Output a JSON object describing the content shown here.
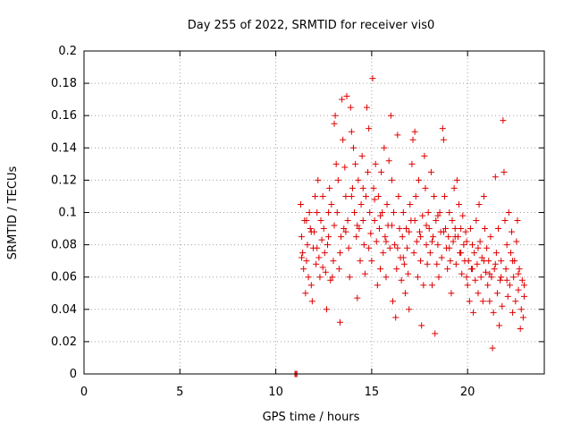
{
  "chart_data": {
    "type": "scatter",
    "title": "Day 255 of 2022, SRMTID for receiver vis0",
    "xlabel": "GPS time / hours",
    "ylabel": "SRMTID / TECUs",
    "xlim": [
      0,
      24
    ],
    "ylim": [
      0,
      0.2
    ],
    "xticks": [
      0,
      5,
      10,
      15,
      20
    ],
    "xtick_labels": [
      "0",
      "5",
      "10",
      "15",
      "20"
    ],
    "yticks": [
      0,
      0.02,
      0.04,
      0.06,
      0.08,
      0.1,
      0.12,
      0.14,
      0.16,
      0.18,
      0.2
    ],
    "ytick_labels": [
      "0",
      "0.02",
      "0.04",
      "0.06",
      "0.08",
      "0.1",
      "0.12",
      "0.14",
      "0.16",
      "0.18",
      "0.2"
    ],
    "grid": true,
    "marker": "+",
    "color": "#e00000",
    "series": [
      {
        "points": [
          [
            11.0,
            0.0
          ],
          [
            11.05,
            0.0
          ],
          [
            11.1,
            0.0
          ],
          [
            11.3,
            0.105
          ],
          [
            11.35,
            0.085
          ],
          [
            11.4,
            0.075
          ],
          [
            11.45,
            0.065
          ],
          [
            11.5,
            0.095
          ],
          [
            11.55,
            0.05
          ],
          [
            11.6,
            0.07
          ],
          [
            11.65,
            0.08
          ],
          [
            11.7,
            0.06
          ],
          [
            11.75,
            0.1
          ],
          [
            11.8,
            0.09
          ],
          [
            11.85,
            0.055
          ],
          [
            11.9,
            0.045
          ],
          [
            11.95,
            0.078
          ],
          [
            12.0,
            0.088
          ],
          [
            12.05,
            0.11
          ],
          [
            12.1,
            0.068
          ],
          [
            12.15,
            0.1
          ],
          [
            12.2,
            0.12
          ],
          [
            12.25,
            0.072
          ],
          [
            12.3,
            0.06
          ],
          [
            12.35,
            0.095
          ],
          [
            12.4,
            0.083
          ],
          [
            12.45,
            0.11
          ],
          [
            12.5,
            0.09
          ],
          [
            12.55,
            0.075
          ],
          [
            12.6,
            0.063
          ],
          [
            12.65,
            0.04
          ],
          [
            12.7,
            0.08
          ],
          [
            12.75,
            0.1
          ],
          [
            12.8,
            0.115
          ],
          [
            12.85,
            0.058
          ],
          [
            12.9,
            0.105
          ],
          [
            12.95,
            0.06
          ],
          [
            13.0,
            0.07
          ],
          [
            13.05,
            0.155
          ],
          [
            13.1,
            0.16
          ],
          [
            13.15,
            0.13
          ],
          [
            13.2,
            0.1
          ],
          [
            13.25,
            0.12
          ],
          [
            13.3,
            0.065
          ],
          [
            13.35,
            0.032
          ],
          [
            13.4,
            0.085
          ],
          [
            13.45,
            0.17
          ],
          [
            13.5,
            0.145
          ],
          [
            13.55,
            0.09
          ],
          [
            13.6,
            0.128
          ],
          [
            13.65,
            0.11
          ],
          [
            13.7,
            0.172
          ],
          [
            13.75,
            0.095
          ],
          [
            13.8,
            0.078
          ],
          [
            13.85,
            0.06
          ],
          [
            13.9,
            0.165
          ],
          [
            13.95,
            0.15
          ],
          [
            14.0,
            0.115
          ],
          [
            14.05,
            0.14
          ],
          [
            14.1,
            0.1
          ],
          [
            14.15,
            0.13
          ],
          [
            14.2,
            0.085
          ],
          [
            14.25,
            0.047
          ],
          [
            14.3,
            0.12
          ],
          [
            14.35,
            0.09
          ],
          [
            14.4,
            0.07
          ],
          [
            14.45,
            0.105
          ],
          [
            14.5,
            0.135
          ],
          [
            14.55,
            0.095
          ],
          [
            14.6,
            0.08
          ],
          [
            14.65,
            0.062
          ],
          [
            14.7,
            0.11
          ],
          [
            14.75,
            0.165
          ],
          [
            14.8,
            0.125
          ],
          [
            14.85,
            0.152
          ],
          [
            14.9,
            0.1
          ],
          [
            14.95,
            0.087
          ],
          [
            15.0,
            0.07
          ],
          [
            15.05,
            0.183
          ],
          [
            15.1,
            0.115
          ],
          [
            15.15,
            0.095
          ],
          [
            15.2,
            0.13
          ],
          [
            15.25,
            0.082
          ],
          [
            15.3,
            0.055
          ],
          [
            15.35,
            0.11
          ],
          [
            15.4,
            0.09
          ],
          [
            15.45,
            0.065
          ],
          [
            15.5,
            0.125
          ],
          [
            15.55,
            0.1
          ],
          [
            15.6,
            0.075
          ],
          [
            15.65,
            0.14
          ],
          [
            15.7,
            0.085
          ],
          [
            15.75,
            0.06
          ],
          [
            15.8,
            0.105
          ],
          [
            15.85,
            0.092
          ],
          [
            15.9,
            0.132
          ],
          [
            15.95,
            0.078
          ],
          [
            16.0,
            0.16
          ],
          [
            16.05,
            0.12
          ],
          [
            16.1,
            0.045
          ],
          [
            16.15,
            0.1
          ],
          [
            16.2,
            0.08
          ],
          [
            16.25,
            0.035
          ],
          [
            16.3,
            0.065
          ],
          [
            16.35,
            0.148
          ],
          [
            16.4,
            0.11
          ],
          [
            16.45,
            0.09
          ],
          [
            16.5,
            0.072
          ],
          [
            16.55,
            0.058
          ],
          [
            16.6,
            0.085
          ],
          [
            16.65,
            0.1
          ],
          [
            16.7,
            0.068
          ],
          [
            16.75,
            0.05
          ],
          [
            16.8,
            0.09
          ],
          [
            16.85,
            0.078
          ],
          [
            16.9,
            0.062
          ],
          [
            16.95,
            0.04
          ],
          [
            17.0,
            0.105
          ],
          [
            17.05,
            0.095
          ],
          [
            17.1,
            0.13
          ],
          [
            17.15,
            0.145
          ],
          [
            17.2,
            0.075
          ],
          [
            17.25,
            0.15
          ],
          [
            17.3,
            0.11
          ],
          [
            17.35,
            0.082
          ],
          [
            17.4,
            0.06
          ],
          [
            17.45,
            0.12
          ],
          [
            17.5,
            0.088
          ],
          [
            17.55,
            0.07
          ],
          [
            17.6,
            0.03
          ],
          [
            17.65,
            0.098
          ],
          [
            17.7,
            0.055
          ],
          [
            17.75,
            0.135
          ],
          [
            17.8,
            0.115
          ],
          [
            17.85,
            0.08
          ],
          [
            17.9,
            0.068
          ],
          [
            17.95,
            0.1
          ],
          [
            18.0,
            0.09
          ],
          [
            18.05,
            0.075
          ],
          [
            18.1,
            0.125
          ],
          [
            18.15,
            0.055
          ],
          [
            18.2,
            0.085
          ],
          [
            18.25,
            0.11
          ],
          [
            18.3,
            0.025
          ],
          [
            18.35,
            0.095
          ],
          [
            18.4,
            0.068
          ],
          [
            18.45,
            0.08
          ],
          [
            18.5,
            0.06
          ],
          [
            18.55,
            0.1
          ],
          [
            18.6,
            0.088
          ],
          [
            18.65,
            0.072
          ],
          [
            18.7,
            0.152
          ],
          [
            18.75,
            0.145
          ],
          [
            18.8,
            0.11
          ],
          [
            18.85,
            0.09
          ],
          [
            18.9,
            0.078
          ],
          [
            18.95,
            0.065
          ],
          [
            19.0,
            0.085
          ],
          [
            19.05,
            0.1
          ],
          [
            19.1,
            0.07
          ],
          [
            19.15,
            0.05
          ],
          [
            19.2,
            0.095
          ],
          [
            19.25,
            0.082
          ],
          [
            19.3,
            0.115
          ],
          [
            19.35,
            0.09
          ],
          [
            19.4,
            0.068
          ],
          [
            19.45,
            0.12
          ],
          [
            19.5,
            0.085
          ],
          [
            19.55,
            0.105
          ],
          [
            19.6,
            0.075
          ],
          [
            19.65,
            0.09
          ],
          [
            19.7,
            0.062
          ],
          [
            19.75,
            0.098
          ],
          [
            19.8,
            0.08
          ],
          [
            19.85,
            0.07
          ],
          [
            19.9,
            0.088
          ],
          [
            19.95,
            0.06
          ],
          [
            20.0,
            0.055
          ],
          [
            20.05,
            0.07
          ],
          [
            20.1,
            0.045
          ],
          [
            20.15,
            0.09
          ],
          [
            20.2,
            0.065
          ],
          [
            20.25,
            0.08
          ],
          [
            20.3,
            0.038
          ],
          [
            20.35,
            0.075
          ],
          [
            20.4,
            0.058
          ],
          [
            20.45,
            0.095
          ],
          [
            20.5,
            0.068
          ],
          [
            20.55,
            0.05
          ],
          [
            20.6,
            0.105
          ],
          [
            20.65,
            0.082
          ],
          [
            20.7,
            0.06
          ],
          [
            20.75,
            0.072
          ],
          [
            20.8,
            0.045
          ],
          [
            20.85,
            0.11
          ],
          [
            20.9,
            0.09
          ],
          [
            20.95,
            0.063
          ],
          [
            21.0,
            0.078
          ],
          [
            21.05,
            0.055
          ],
          [
            21.1,
            0.07
          ],
          [
            21.15,
            0.045
          ],
          [
            21.2,
            0.085
          ],
          [
            21.25,
            0.06
          ],
          [
            21.3,
            0.016
          ],
          [
            21.35,
            0.038
          ],
          [
            21.4,
            0.065
          ],
          [
            21.45,
            0.122
          ],
          [
            21.5,
            0.075
          ],
          [
            21.55,
            0.05
          ],
          [
            21.6,
            0.09
          ],
          [
            21.65,
            0.03
          ],
          [
            21.7,
            0.058
          ],
          [
            21.75,
            0.07
          ],
          [
            21.8,
            0.042
          ],
          [
            21.85,
            0.157
          ],
          [
            21.9,
            0.125
          ],
          [
            21.95,
            0.095
          ],
          [
            22.0,
            0.065
          ],
          [
            22.05,
            0.08
          ],
          [
            22.1,
            0.048
          ],
          [
            22.15,
            0.1
          ],
          [
            22.2,
            0.055
          ],
          [
            22.25,
            0.075
          ],
          [
            22.3,
            0.088
          ],
          [
            22.35,
            0.038
          ],
          [
            22.4,
            0.06
          ],
          [
            22.45,
            0.07
          ],
          [
            22.5,
            0.045
          ],
          [
            22.55,
            0.082
          ],
          [
            22.6,
            0.095
          ],
          [
            22.65,
            0.052
          ],
          [
            22.7,
            0.065
          ],
          [
            22.75,
            0.028
          ],
          [
            22.8,
            0.04
          ],
          [
            22.85,
            0.058
          ],
          [
            22.9,
            0.035
          ],
          [
            22.95,
            0.048
          ],
          [
            11.35,
            0.072
          ],
          [
            11.6,
            0.095
          ],
          [
            11.85,
            0.088
          ],
          [
            12.15,
            0.078
          ],
          [
            12.45,
            0.066
          ],
          [
            12.75,
            0.085
          ],
          [
            13.05,
            0.092
          ],
          [
            13.35,
            0.075
          ],
          [
            13.65,
            0.088
          ],
          [
            13.95,
            0.11
          ],
          [
            14.25,
            0.092
          ],
          [
            14.55,
            0.115
          ],
          [
            14.85,
            0.078
          ],
          [
            15.15,
            0.108
          ],
          [
            15.45,
            0.098
          ],
          [
            15.75,
            0.082
          ],
          [
            16.05,
            0.092
          ],
          [
            16.35,
            0.078
          ],
          [
            16.65,
            0.072
          ],
          [
            16.95,
            0.088
          ],
          [
            17.25,
            0.095
          ],
          [
            17.55,
            0.085
          ],
          [
            17.85,
            0.092
          ],
          [
            18.15,
            0.082
          ],
          [
            18.45,
            0.098
          ],
          [
            18.75,
            0.088
          ],
          [
            19.05,
            0.078
          ],
          [
            19.35,
            0.085
          ],
          [
            19.65,
            0.075
          ],
          [
            19.95,
            0.082
          ],
          [
            20.25,
            0.065
          ],
          [
            20.55,
            0.078
          ],
          [
            20.85,
            0.07
          ],
          [
            21.15,
            0.062
          ],
          [
            21.45,
            0.068
          ],
          [
            21.75,
            0.06
          ],
          [
            22.05,
            0.058
          ],
          [
            22.35,
            0.07
          ],
          [
            22.65,
            0.062
          ],
          [
            22.95,
            0.055
          ]
        ]
      }
    ]
  }
}
